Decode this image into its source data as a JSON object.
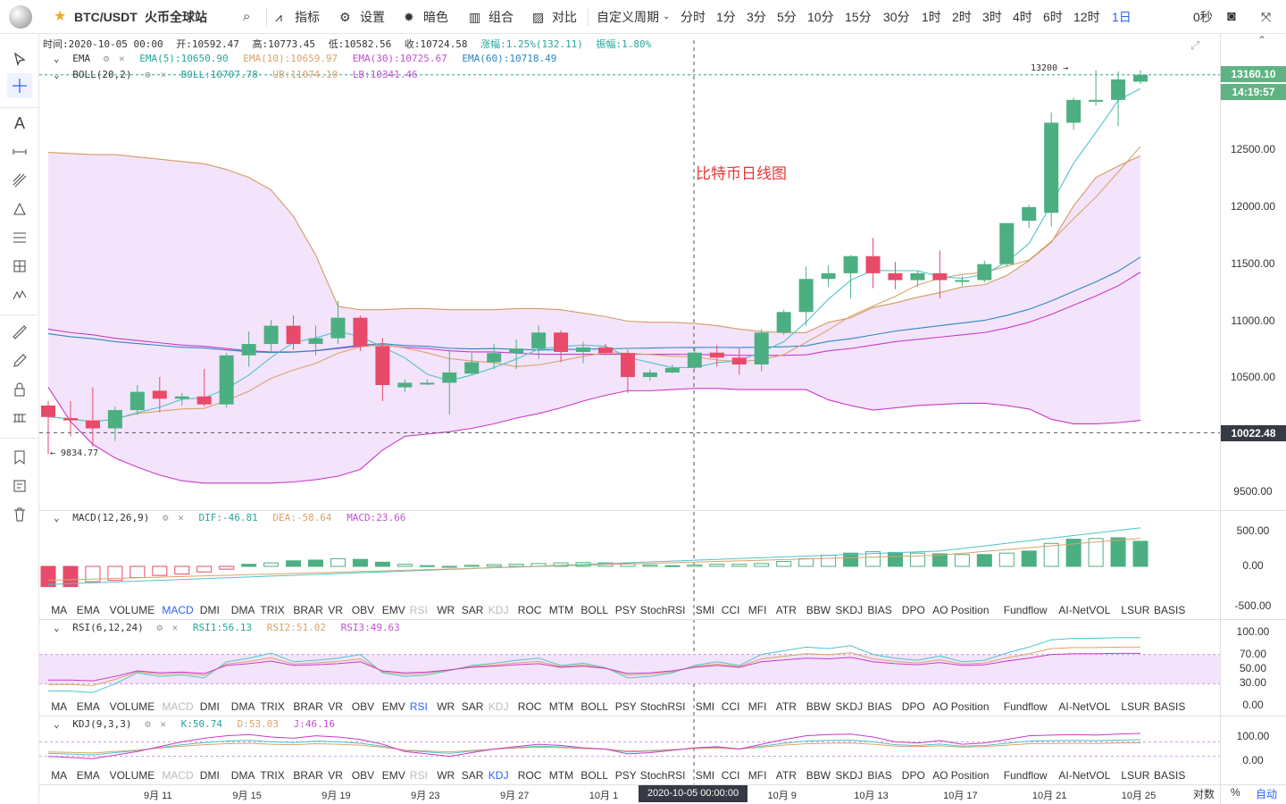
{
  "header": {
    "symbol": "BTC/USDT",
    "exchange": "火币全球站"
  },
  "toolbar": {
    "indicators": "指标",
    "settings": "设置",
    "theme": "暗色",
    "combo": "组合",
    "compare": "对比",
    "custom_period": "自定义周期",
    "periods": [
      "分时",
      "1分",
      "3分",
      "5分",
      "10分",
      "15分",
      "30分",
      "1时",
      "2时",
      "3时",
      "4时",
      "6时",
      "12时",
      "1日"
    ],
    "active_period": "1日",
    "seconds": "0秒"
  },
  "ohlc_line": {
    "time": "时间:2020-10-05 00:00",
    "open": "开:10592.47",
    "high": "高:10773.45",
    "low": "低:10582.56",
    "close": "收:10724.58",
    "change": "涨幅:1.25%(132.11)",
    "amplitude": "振幅:1.80%"
  },
  "ema_line": {
    "name": "EMA",
    "v1": "EMA(5):10650.90",
    "v2": "EMA(10):10659.97",
    "v3": "EMA(30):10725.67",
    "v4": "EMA(60):10718.49"
  },
  "boll_line": {
    "name": "BOLL(20,2)",
    "v1": "BOLL:10707.78",
    "v2": "UB:11074.10",
    "v3": "LB:10341.46"
  },
  "macd_line": {
    "name": "MACD(12,26,9)",
    "v1": "DIF:-46.81",
    "v2": "DEA:-58.64",
    "v3": "MACD:23.66"
  },
  "rsi_line": {
    "name": "RSI(6,12,24)",
    "v1": "RSI1:56.13",
    "v2": "RSI2:51.02",
    "v3": "RSI3:49.63"
  },
  "kdj_line": {
    "name": "KDJ(9,3,3)",
    "v1": "K:50.74",
    "v2": "D:53.03",
    "v3": "J:46.16"
  },
  "annotation": "比特币日线图",
  "price_labels": {
    "last": "13160.10",
    "countdown": "14:19:57",
    "crosshair": "10022.48",
    "high_mark": "13200 →",
    "low_mark": "← 9834.77"
  },
  "main_axis": [
    "12500.00",
    "12000.00",
    "11500.00",
    "11000.00",
    "10500.00",
    "10000.00",
    "9500.00"
  ],
  "macd_axis": [
    "500.00",
    "0.00",
    "-500.00"
  ],
  "rsi_axis": [
    "100.00",
    "70.00",
    "50.00",
    "30.00",
    "0.00"
  ],
  "kdj_axis": [
    "100.00",
    "0.00"
  ],
  "x_axis": [
    "9月 11",
    "9月 15",
    "9月 19",
    "9月 23",
    "9月 27",
    "10月 1",
    "10月 9",
    "10月 13",
    "10月 17",
    "10月 21",
    "10月 25"
  ],
  "x_crosshair": "2020-10-05 00:00:00",
  "bottom_right": {
    "log": "对数",
    "pct": "%",
    "auto": "自动"
  },
  "indicator_tabs": [
    "MA",
    "EMA",
    "VOLUME",
    "MACD",
    "DMI",
    "DMA",
    "TRIX",
    "BRAR",
    "VR",
    "OBV",
    "EMV",
    "RSI",
    "WR",
    "SAR",
    "KDJ",
    "ROC",
    "MTM",
    "BOLL",
    "PSY",
    "StochRSI",
    "SMI",
    "CCI",
    "MFI",
    "ATR",
    "BBW",
    "SKDJ",
    "BIAS",
    "DPO",
    "AO",
    "Position",
    "Fundflow",
    "AI-NetVOL",
    "LSUR",
    "BASIS"
  ],
  "colors": {
    "up": "#26a69a",
    "down": "#ef5350",
    "bb_fill": "#f3e4fb",
    "ema5": "#4dc4c9",
    "ema10": "#d9a36a",
    "boll_line": "#d04fd3",
    "accent": "#2962ff"
  }
}
